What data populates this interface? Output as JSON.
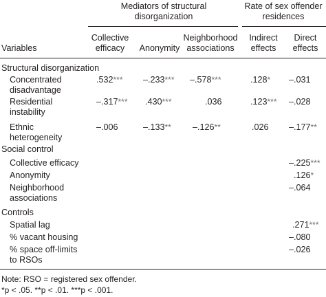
{
  "header": {
    "variables": "Variables",
    "group_mediators": [
      "Mediators of structural",
      "disorganization"
    ],
    "group_rate": [
      "Rate of sex offender",
      "residences"
    ],
    "col_collective": [
      "Collective",
      "efficacy"
    ],
    "col_anonymity": "Anonymity",
    "col_neighborhood": [
      "Neighborhood",
      "associations"
    ],
    "col_indirect": [
      "Indirect",
      "effects"
    ],
    "col_direct": [
      "Direct",
      "effects"
    ]
  },
  "sections": {
    "structural": "Structural disorganization",
    "social": "Social control",
    "controls": "Controls"
  },
  "rows": {
    "concentrated": {
      "label": [
        "Concentrated",
        "disadvantage"
      ],
      "collective": ".532",
      "collective_sig": "***",
      "anonymity": "–.233",
      "anonymity_sig": "***",
      "neighborhood": "–.578",
      "neighborhood_sig": "***",
      "indirect": ".128",
      "indirect_sig": "*",
      "direct": "–.031",
      "direct_sig": ""
    },
    "residential": {
      "label": [
        "Residential",
        "instability"
      ],
      "collective": "–.317",
      "collective_sig": "***",
      "anonymity": ".430",
      "anonymity_sig": "***",
      "neighborhood": ".036",
      "neighborhood_sig": "",
      "indirect": ".123",
      "indirect_sig": "***",
      "direct": "–.028",
      "direct_sig": ""
    },
    "ethnic": {
      "label": [
        "Ethnic",
        "heterogeneity"
      ],
      "collective": "–.006",
      "collective_sig": "",
      "anonymity": "–.133",
      "anonymity_sig": "**",
      "neighborhood": "–.126",
      "neighborhood_sig": "**",
      "indirect": ".026",
      "indirect_sig": "",
      "direct": "–.177",
      "direct_sig": "**"
    },
    "collective_efficacy": {
      "label": "Collective efficacy",
      "direct": "–.225",
      "direct_sig": "***"
    },
    "anonymity": {
      "label": "Anonymity",
      "direct": ".126",
      "direct_sig": "*"
    },
    "neighborhood_assoc": {
      "label": [
        "Neighborhood",
        "associations"
      ],
      "direct": "–.064",
      "direct_sig": ""
    },
    "spatial_lag": {
      "label": "Spatial lag",
      "direct": ".271",
      "direct_sig": "***"
    },
    "vacant": {
      "label": "% vacant housing",
      "direct": "–.080",
      "direct_sig": ""
    },
    "offlimits": {
      "label": [
        "% space off-limits",
        "to RSOs"
      ],
      "direct": "–.026",
      "direct_sig": ""
    }
  },
  "notes": {
    "line1": "Note: RSO = registered sex offender.",
    "line2": "*p < .05. **p < .01. ***p < .001."
  }
}
